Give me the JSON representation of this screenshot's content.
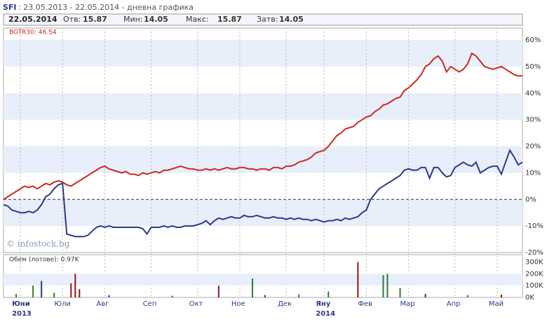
{
  "header": {
    "ticker": "SFI",
    "range": ": 23.05.2013 - 22.05.2014 - дневна графика"
  },
  "quote": {
    "date": "22.05.2014",
    "fields": [
      {
        "label": "Отв:",
        "value": 15.87
      },
      {
        "label": "Мин:",
        "value": 14.05
      },
      {
        "label": "Макс:",
        "value": 15.87
      },
      {
        "label": "Затв:",
        "value": 14.05
      }
    ]
  },
  "chart_data": [
    {
      "type": "line",
      "legend_label": "BGTR30: 46.54",
      "watermark": "© infostock.bg",
      "xlim": [
        0,
        123
      ],
      "ylim": [
        -20,
        64.5
      ],
      "yticks": [
        {
          "value": 60,
          "label": "60%"
        },
        {
          "value": 50,
          "label": "50%"
        },
        {
          "value": 40,
          "label": "40%"
        },
        {
          "value": 30,
          "label": "30%"
        },
        {
          "value": 20,
          "label": "20%"
        },
        {
          "value": 10,
          "label": "10%"
        },
        {
          "value": 0,
          "label": "0%"
        },
        {
          "value": -10,
          "label": "-10%"
        },
        {
          "value": -20,
          "label": "-20%"
        }
      ],
      "xticks": [
        {
          "value": 4,
          "label": "Юни"
        },
        {
          "value": 14,
          "label": "Юли"
        },
        {
          "value": 24,
          "label": "Авг"
        },
        {
          "value": 35,
          "label": "Сеп"
        },
        {
          "value": 46,
          "label": "Окт"
        },
        {
          "value": 56,
          "label": "Ное"
        },
        {
          "value": 67,
          "label": "Дек"
        },
        {
          "value": 76,
          "label": "Яну"
        },
        {
          "value": 86,
          "label": "Фев"
        },
        {
          "value": 96,
          "label": "Мар"
        },
        {
          "value": 107,
          "label": "Апр"
        },
        {
          "value": 117,
          "label": "Май"
        }
      ],
      "year_labels": [
        {
          "value": 4,
          "label": "2013"
        },
        {
          "value": 76,
          "label": "2014"
        }
      ],
      "bands": true,
      "zero_line": true,
      "series": [
        {
          "name": "BGTR30",
          "color": "#cc2a1e",
          "values": [
            0,
            1,
            2,
            3,
            4,
            5,
            4.5,
            5,
            4,
            5,
            6,
            5.5,
            6.5,
            7,
            6.5,
            5.5,
            5,
            6,
            7,
            8,
            9,
            10,
            11,
            12,
            12.5,
            11.5,
            11,
            10.5,
            10,
            10.5,
            9.5,
            9.5,
            9,
            10,
            9.5,
            10,
            10.5,
            10,
            11,
            11,
            11.5,
            12,
            12.5,
            12,
            11.5,
            11.5,
            11,
            11,
            11.5,
            11,
            11.5,
            11,
            11.5,
            12,
            11.5,
            11.5,
            12,
            12,
            11.5,
            11.5,
            11,
            11.5,
            11.5,
            11,
            12,
            12,
            11.5,
            12.5,
            12.5,
            13,
            14,
            14.5,
            15,
            16,
            17.5,
            18,
            18.5,
            20,
            22,
            24,
            25,
            26.5,
            27,
            27.5,
            29,
            30,
            31,
            31.5,
            33,
            34,
            35.5,
            36,
            37,
            38,
            38.5,
            41,
            42,
            43.5,
            45,
            47,
            50,
            51,
            53,
            54,
            52,
            48,
            50,
            49,
            48,
            49,
            51,
            55,
            54,
            52,
            50,
            49.5,
            49,
            49.5,
            50,
            49,
            48,
            47,
            46.5,
            46.54
          ]
        },
        {
          "name": "SFI",
          "color": "#2b3a8a",
          "values": [
            -2,
            -2.5,
            -4,
            -4.5,
            -5,
            -5,
            -4.5,
            -5,
            -4,
            -2,
            1,
            2,
            4,
            5.5,
            6,
            -13,
            -13.5,
            -14,
            -14,
            -14,
            -13.5,
            -12,
            -10.5,
            -10,
            -10.5,
            -10,
            -10.5,
            -10.5,
            -10.5,
            -10.5,
            -10.5,
            -10.5,
            -10.5,
            -11,
            -13,
            -10.5,
            -10.5,
            -10.5,
            -10,
            -10.5,
            -10,
            -10.5,
            -10.5,
            -10,
            -10,
            -10,
            -9.5,
            -9,
            -8,
            -9.5,
            -8,
            -7,
            -7.5,
            -7,
            -6.5,
            -7,
            -7,
            -6,
            -6.5,
            -6.5,
            -6,
            -6.5,
            -7,
            -7,
            -6.5,
            -7,
            -7,
            -7.5,
            -7,
            -7.5,
            -7,
            -7.5,
            -7.5,
            -8,
            -7.5,
            -8,
            -8.5,
            -8,
            -8,
            -7.5,
            -8,
            -7,
            -7.5,
            -7,
            -6.5,
            -5,
            -4,
            0,
            2,
            4,
            5,
            6,
            7,
            8,
            9,
            11,
            11.5,
            11,
            11,
            12,
            12,
            8,
            12,
            12,
            10,
            8.5,
            9,
            12,
            13,
            14,
            13,
            12.5,
            14,
            10,
            11,
            12,
            12.5,
            12.5,
            9.5,
            14,
            18.5,
            16,
            13,
            14
          ]
        }
      ]
    },
    {
      "type": "bar",
      "label": "Обем (лотове): 0.97K",
      "ylim": [
        0,
        362
      ],
      "yticks": [
        {
          "value": 300,
          "label": "300K"
        },
        {
          "value": 200,
          "label": "200K"
        },
        {
          "value": 100,
          "label": "100K"
        },
        {
          "value": 0,
          "label": "0K"
        }
      ],
      "x": [
        3,
        7,
        9,
        12,
        16,
        17,
        18,
        25,
        40,
        51,
        59,
        62,
        70,
        77,
        84,
        90,
        91,
        94,
        100,
        110,
        118
      ],
      "values": [
        30,
        100,
        140,
        40,
        120,
        200,
        70,
        20,
        15,
        100,
        160,
        20,
        25,
        50,
        300,
        190,
        200,
        80,
        30,
        20,
        25
      ],
      "colors": [
        "#2e7d32",
        "#2e7d32",
        "#2b3a8a",
        "#2e7d32",
        "#8b1a1a",
        "#8b1a1a",
        "#8b1a1a",
        "#2b3a8a",
        "#2e7d32",
        "#8b1a1a",
        "#2e7d32",
        "#2b3a8a",
        "#2e7d32",
        "#2e7d32",
        "#8b1a1a",
        "#2e7d32",
        "#2e7d32",
        "#2e7d32",
        "#2b3a8a",
        "#2e7d32",
        "#8b1a1a"
      ]
    }
  ]
}
